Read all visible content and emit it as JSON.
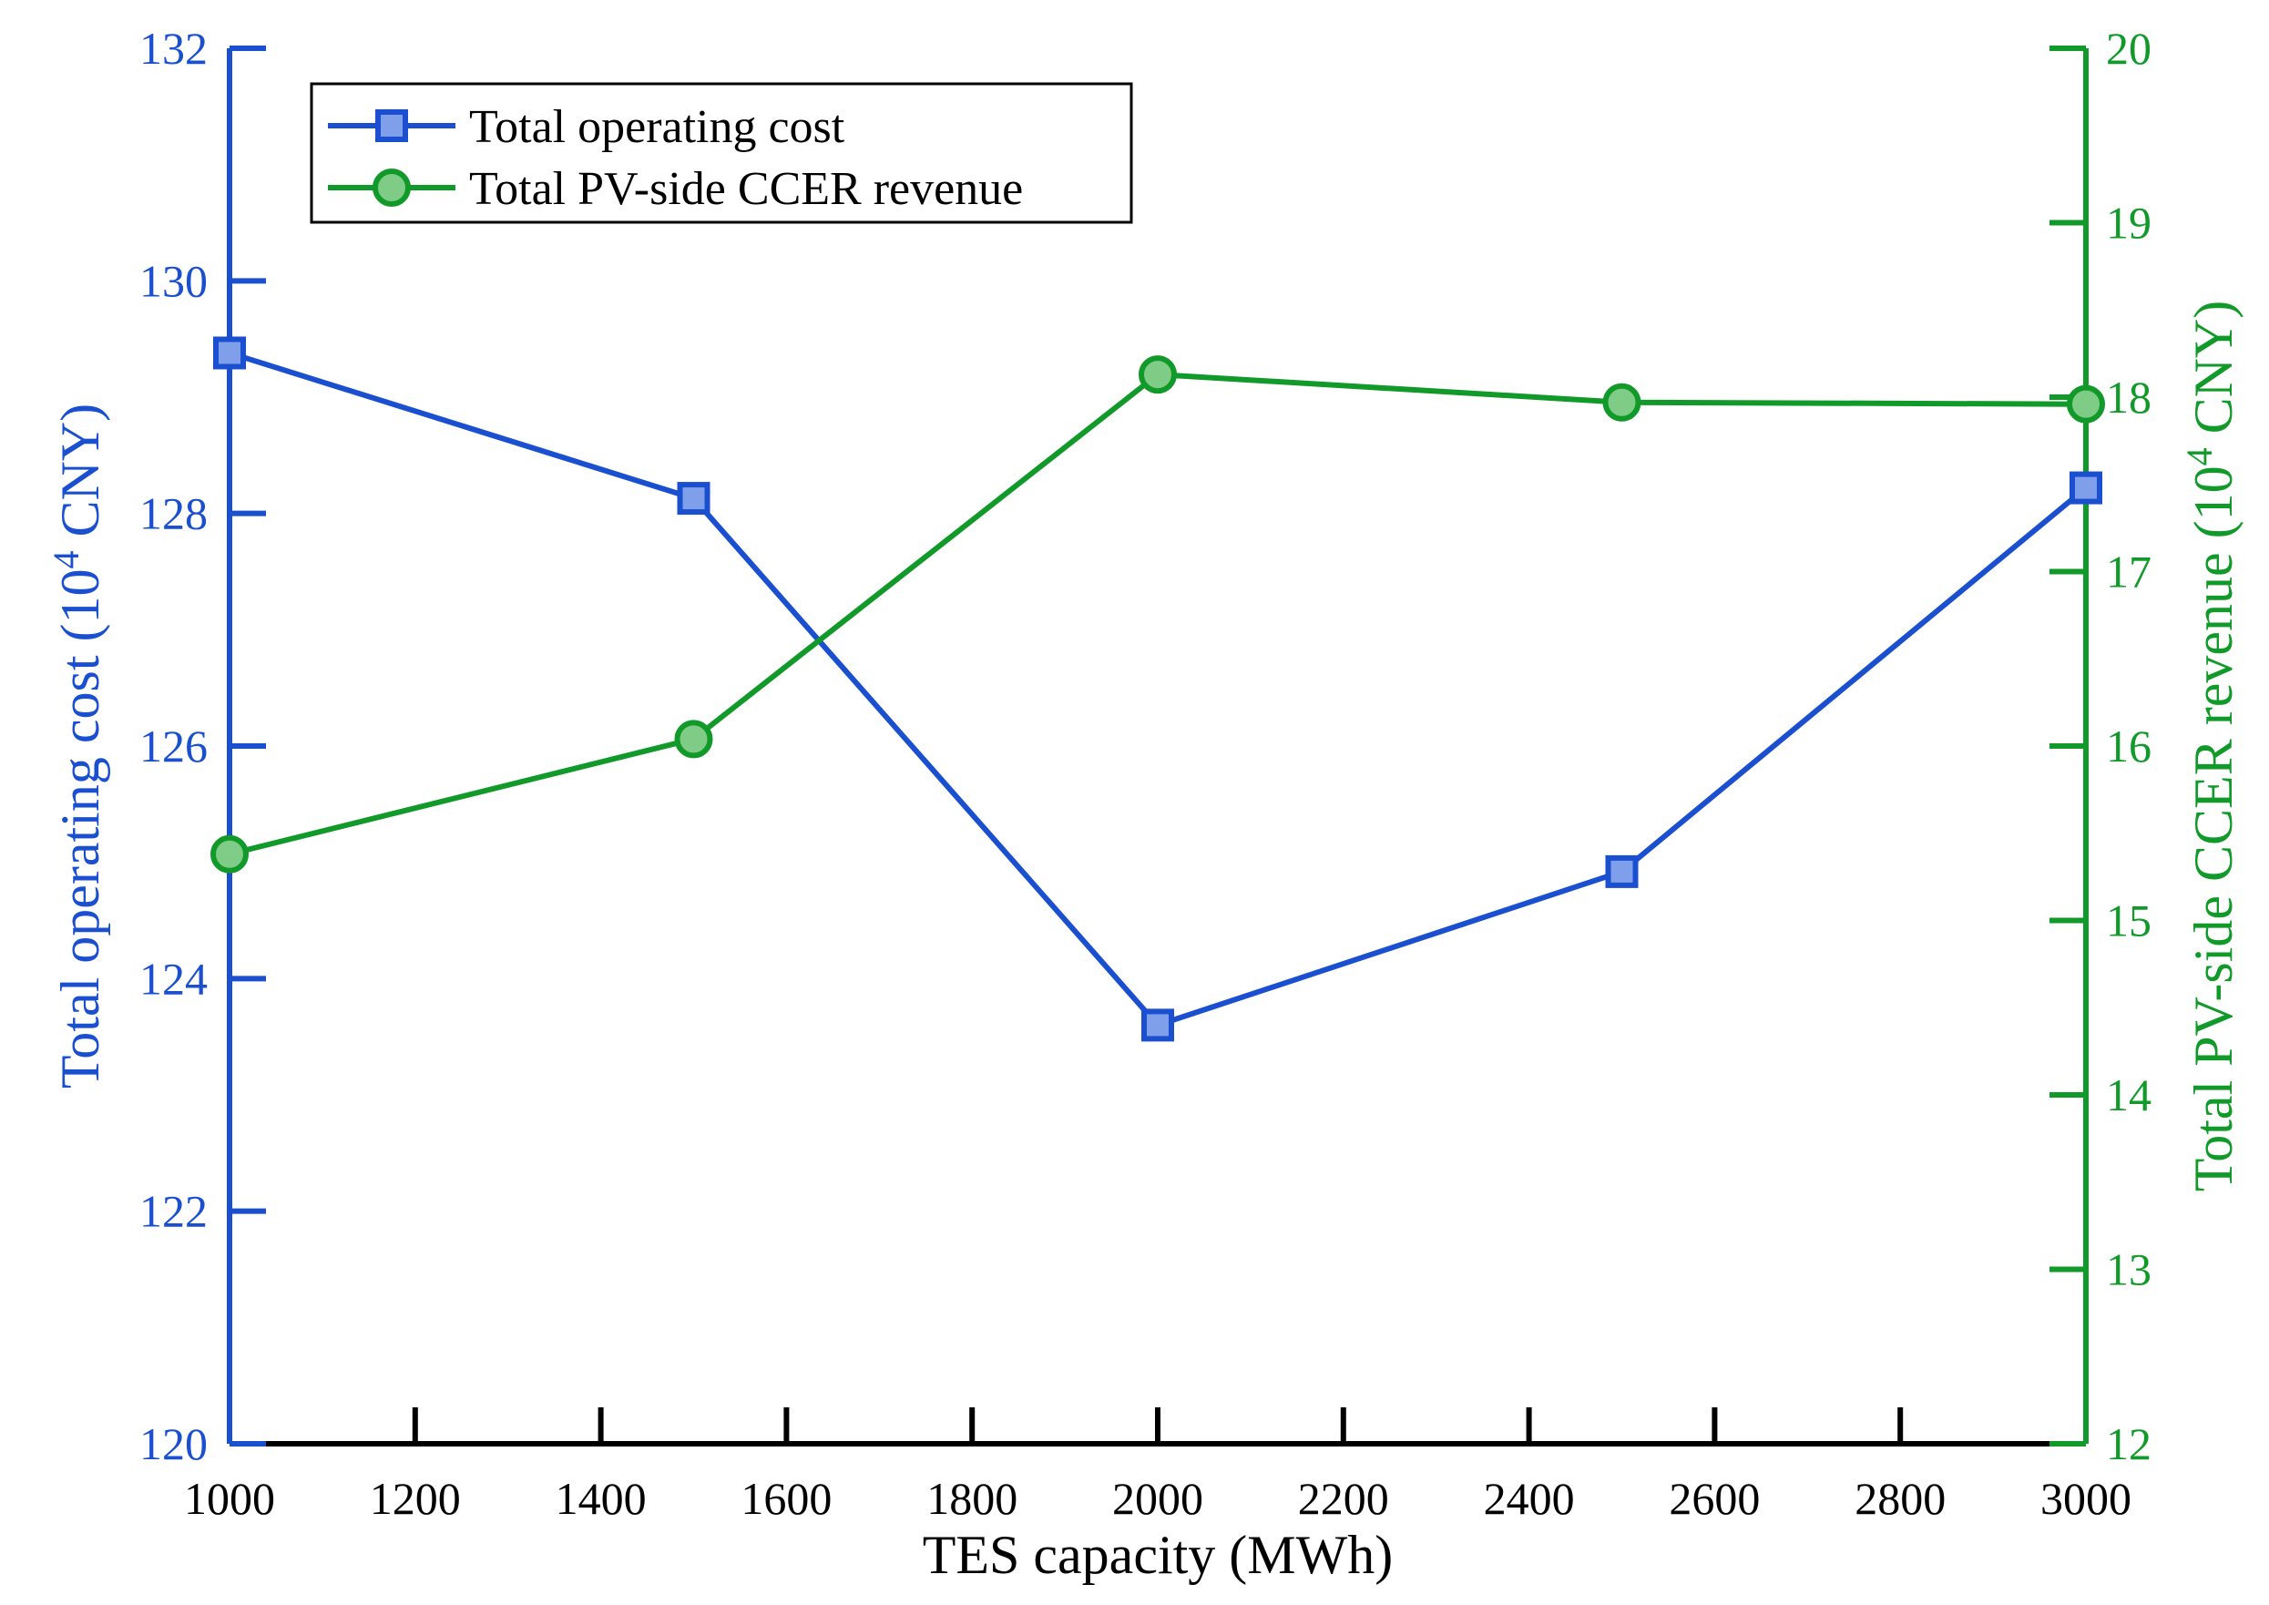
{
  "chart_data": {
    "type": "line",
    "xlabel": "TES capacity (MWh)",
    "xlim": [
      1000,
      3000
    ],
    "xticks": [
      1000,
      1200,
      1400,
      1600,
      1800,
      2000,
      2200,
      2400,
      2600,
      2800,
      3000
    ],
    "y_left": {
      "label_main": "Total operating cost (10",
      "label_sup": "4",
      "label_tail": " CNY)",
      "lim": [
        120,
        132
      ],
      "ticks": [
        120,
        122,
        124,
        126,
        128,
        130,
        132
      ],
      "color": "#1A4FD0"
    },
    "y_right": {
      "label_main": "Total PV-side CCER revenue (10",
      "label_sup": "4",
      "label_tail": " CNY)",
      "lim": [
        12,
        20
      ],
      "ticks": [
        12,
        13,
        14,
        15,
        16,
        17,
        18,
        19,
        20
      ],
      "color": "#119A29"
    },
    "series": [
      {
        "name": "Total operating cost",
        "axis": "left",
        "marker": "square",
        "color": "#1A4FD0",
        "fill": "#7F9FEA",
        "x": [
          1000,
          1500,
          2000,
          2500,
          3000
        ],
        "values": [
          129.38,
          128.13,
          123.6,
          124.92,
          128.22
        ]
      },
      {
        "name": "Total PV-side CCER revenue",
        "axis": "right",
        "marker": "circle",
        "color": "#119A29",
        "fill": "#7FCC86",
        "x": [
          1000,
          1500,
          2000,
          2500,
          3000
        ],
        "values": [
          15.38,
          16.04,
          18.13,
          17.97,
          17.96
        ]
      }
    ],
    "legend": {
      "position": "top-left"
    },
    "grid": false
  }
}
